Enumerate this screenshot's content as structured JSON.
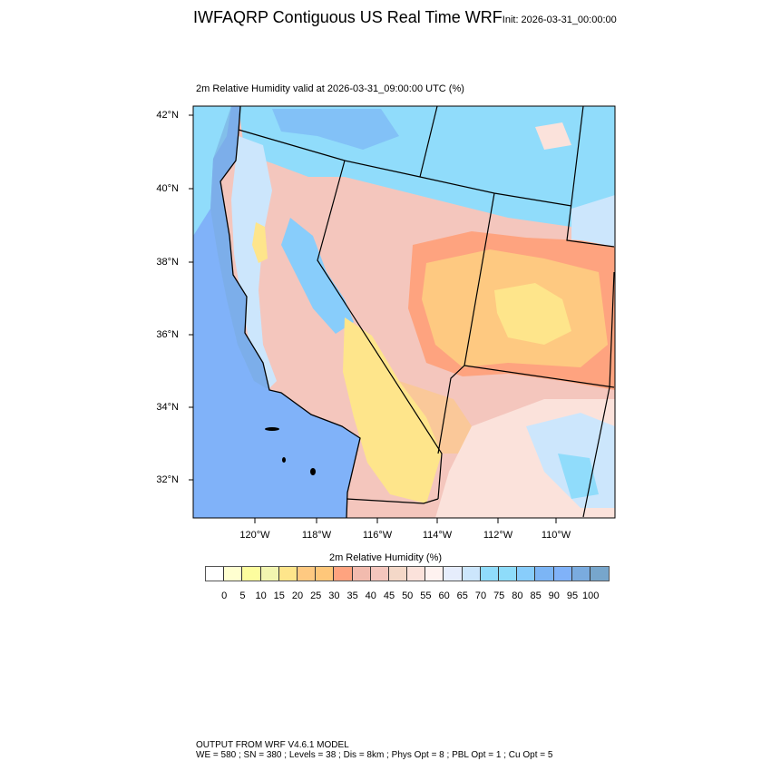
{
  "header": {
    "title": "IWFAQRP Contiguous US Real Time WRF",
    "init": "Init: 2026-03-31_00:00:00",
    "subtitle": "2m Relative Humidity valid at 2026-03-31_09:00:00 UTC   (%)"
  },
  "map": {
    "lat_ticks": [
      "42°N",
      "40°N",
      "38°N",
      "36°N",
      "34°N",
      "32°N"
    ],
    "lon_ticks": [
      "120°W",
      "118°W",
      "116°W",
      "114°W",
      "112°W",
      "110°W"
    ]
  },
  "colorbar": {
    "title": "2m Relative Humidity  (%)",
    "labels": [
      "0",
      "5",
      "10",
      "15",
      "20",
      "25",
      "30",
      "35",
      "40",
      "45",
      "50",
      "55",
      "60",
      "65",
      "70",
      "75",
      "80",
      "85",
      "90",
      "95",
      "100"
    ],
    "colors": [
      "#ffffff",
      "#ffffd0",
      "#fdfd9e",
      "#f2f5b0",
      "#fee58b",
      "#fec981",
      "#fec77a",
      "#fea37f",
      "#f2bbae",
      "#f4c6bd",
      "#f4d8c8",
      "#fbe2db",
      "#fef2f0",
      "#e6edfc",
      "#cce6fc",
      "#90dcfb",
      "#8edcfa",
      "#88cdfb",
      "#7cb5f5",
      "#80b2f9",
      "#7aabdf",
      "#77a6cc"
    ]
  },
  "footer": {
    "line1": "OUTPUT FROM WRF V4.6.1 MODEL",
    "line2": "WE = 580 ; SN = 380 ; Levels = 38 ; Dis = 8km ; Phys Opt = 8 ; PBL Opt = 1 ; Cu Opt = 5"
  }
}
